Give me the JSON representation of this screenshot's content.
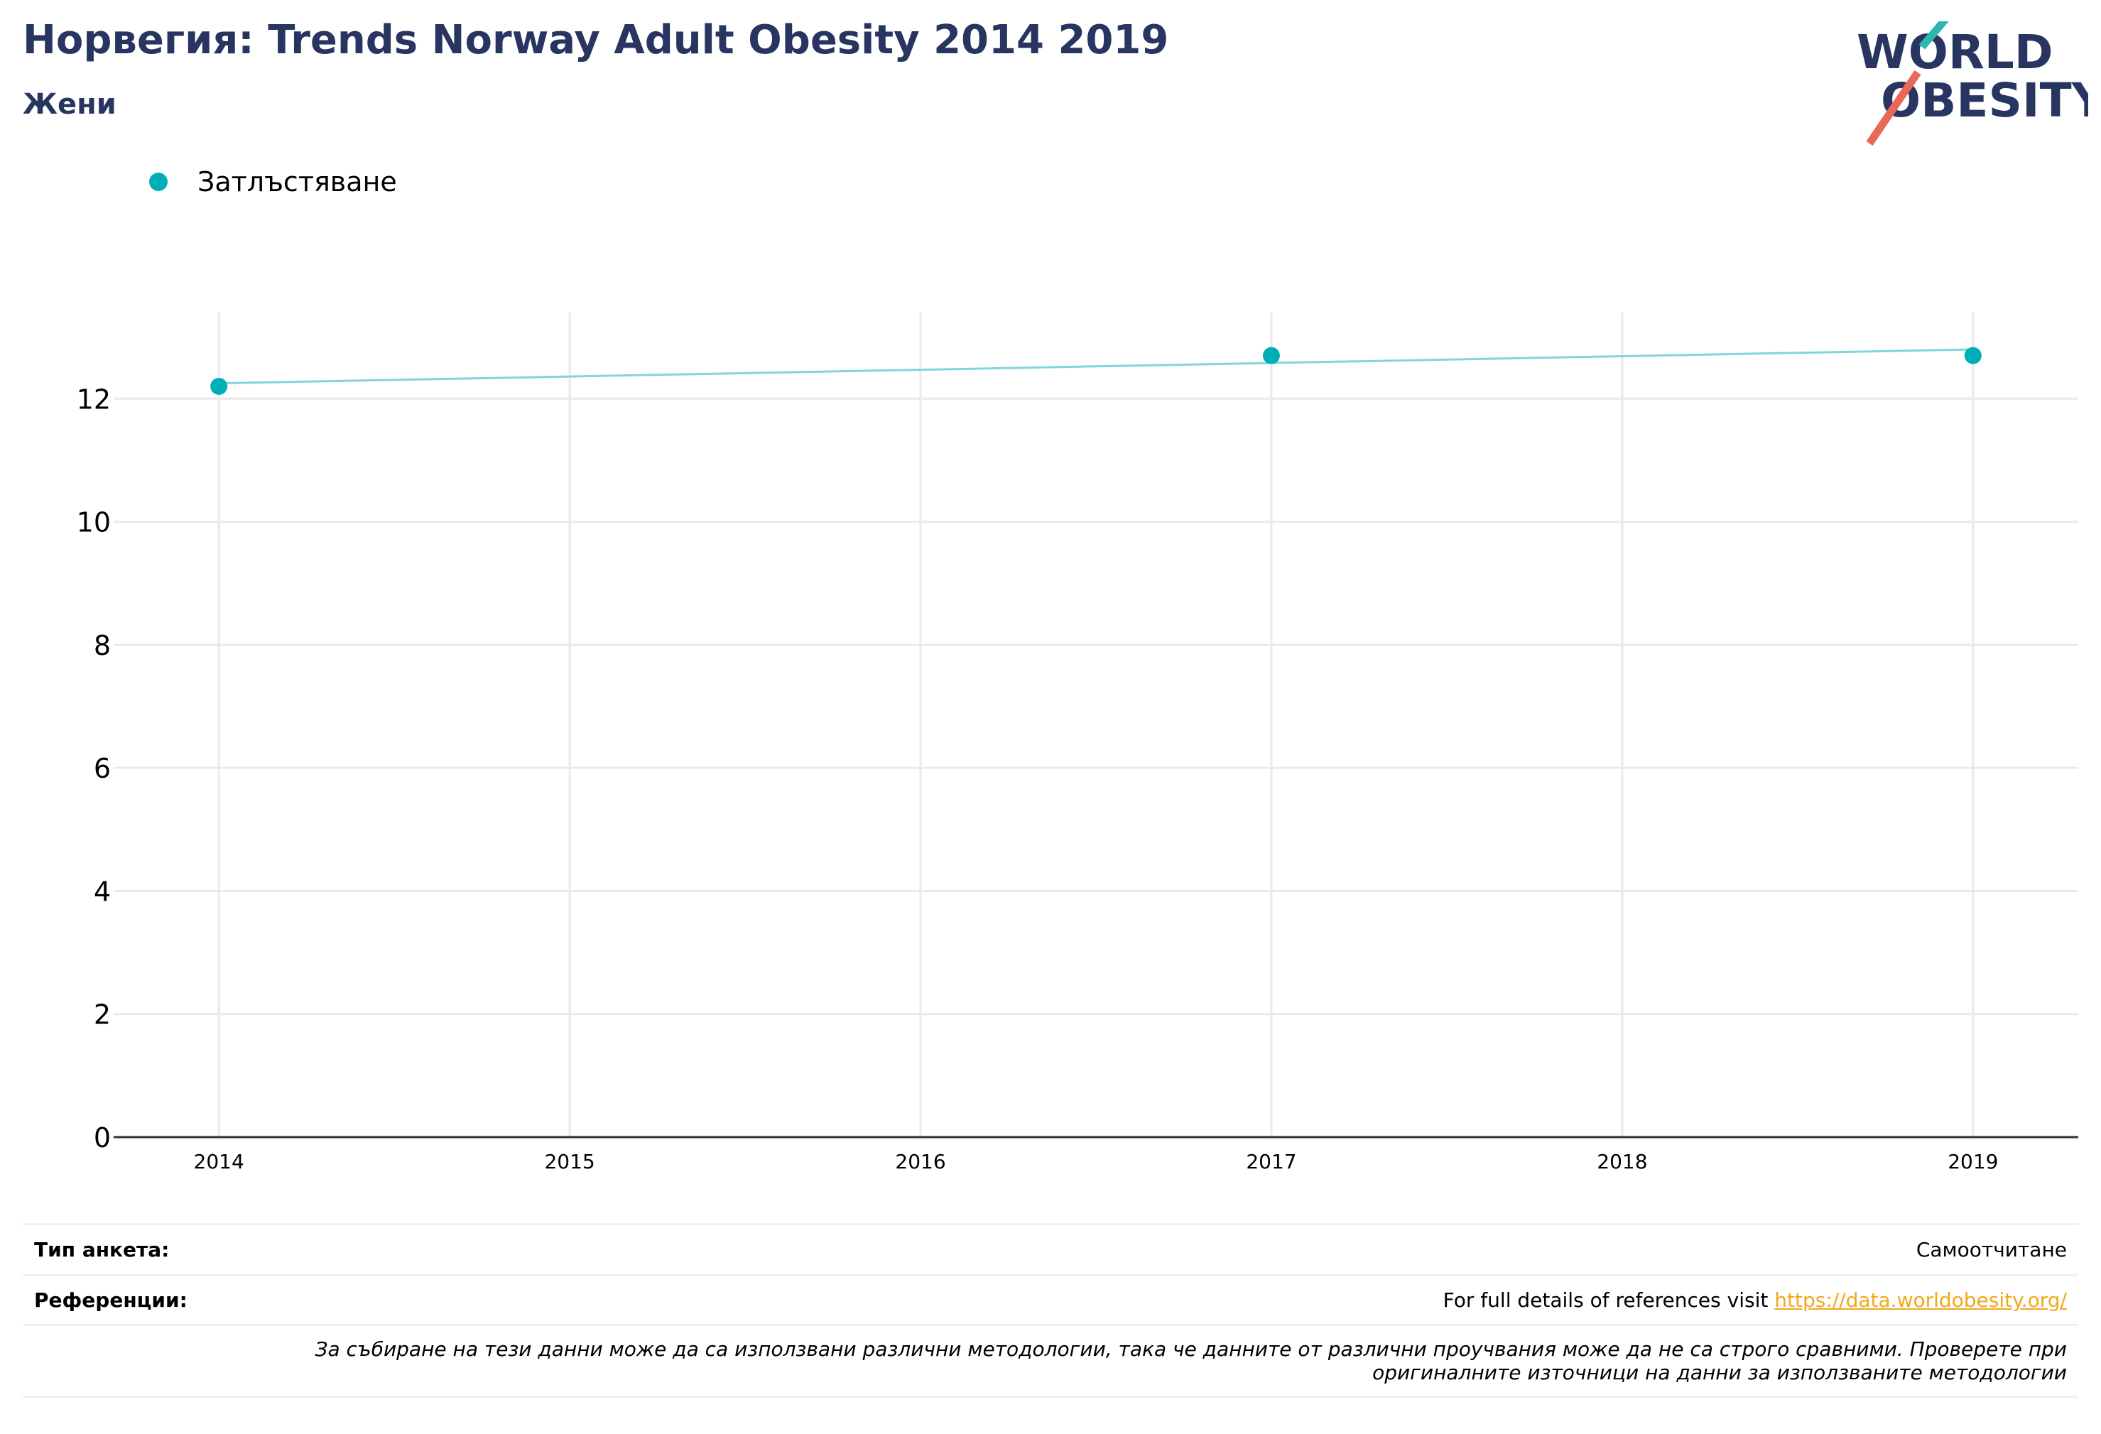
{
  "header": {
    "title": "Норвегия: Trends Norway Adult Obesity 2014 2019",
    "subtitle": "Жени"
  },
  "logo": {
    "line1": "WORLD",
    "line2": "OBESITY",
    "colors": {
      "text": "#283561",
      "teal_slash": "#2CB8B0",
      "red_slash": "#E8695A"
    }
  },
  "legend": {
    "items": [
      {
        "label": "Затлъстяване",
        "color": "#00AEB8"
      }
    ]
  },
  "chart_data": {
    "type": "scatter",
    "title": "",
    "xlabel": "",
    "ylabel": "",
    "x_ticks": [
      "2014",
      "2015",
      "2016",
      "2017",
      "2018",
      "2019"
    ],
    "y_ticks": [
      0,
      2,
      4,
      6,
      8,
      10,
      12
    ],
    "xlim": [
      2013.7,
      2019.3
    ],
    "ylim": [
      0,
      13.4
    ],
    "grid": true,
    "series": [
      {
        "name": "Затлъстяване",
        "color": "#00AEB8",
        "x": [
          2014,
          2017,
          2019
        ],
        "y": [
          12.2,
          12.7,
          12.7
        ]
      }
    ],
    "trendline": {
      "color": "#7FD6DB",
      "x": [
        2014,
        2019
      ],
      "y": [
        12.25,
        12.8
      ]
    }
  },
  "footer": {
    "survey_type_label": "Тип анкета:",
    "survey_type_value": "Самоотчитане",
    "references_label": "Референции:",
    "references_text": "For full details of references visit ",
    "references_link": "https://data.worldobesity.org/",
    "note_line1": "За събиране на тези данни може да са използвани различни методологии, така че данните от различни проучвания може да не са строго сравними. Проверете при",
    "note_line2": "оригиналните източници на данни за използваните методологии"
  }
}
